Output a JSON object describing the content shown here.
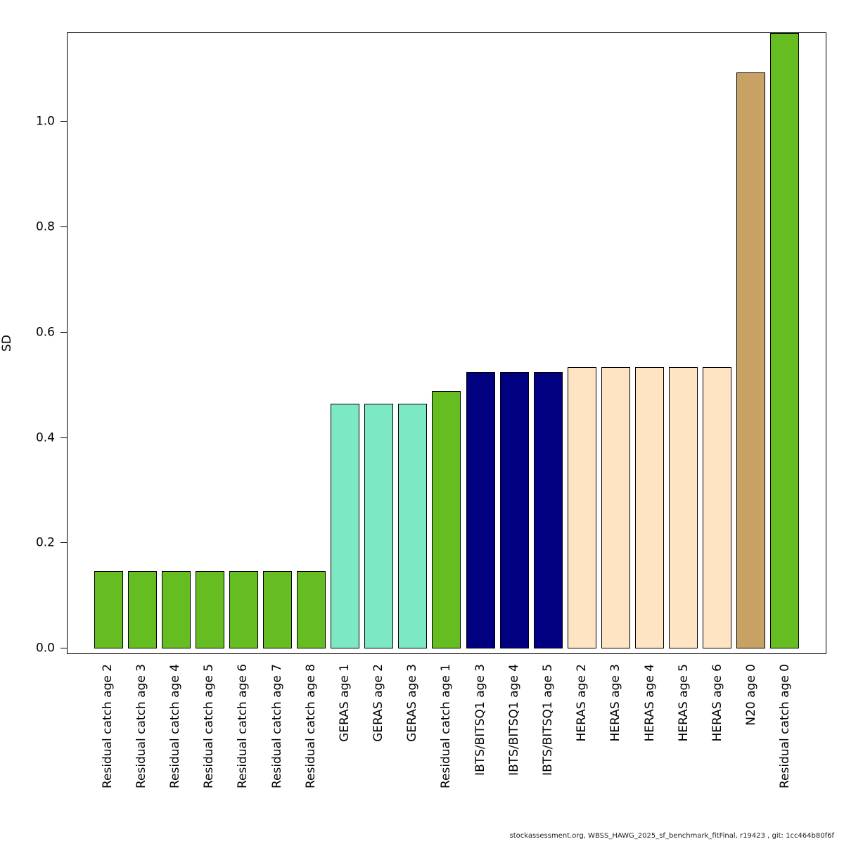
{
  "figure": {
    "ylabel": "SD",
    "footer": "stockassessment.org, WBSS_HAWG_2025_sf_benchmark_fitFinal, r19423 , git: 1cc464b80f6f"
  },
  "colors": {
    "residual_catch": "#66BD22",
    "geras": "#7CE8C4",
    "ibts_bitsq1": "#000080",
    "heras": "#FFE4C4",
    "n20": "#C8A165",
    "bar_border": "#000000"
  },
  "chart_data": {
    "type": "bar",
    "title": "",
    "xlabel": "",
    "ylabel": "SD",
    "ylim": [
      0,
      1.17
    ],
    "yticks": [
      0.0,
      0.2,
      0.4,
      0.6,
      0.8,
      1.0
    ],
    "grid": false,
    "legend_position": "none",
    "categories": [
      "Residual catch age 2",
      "Residual catch age 3",
      "Residual catch age 4",
      "Residual catch age 5",
      "Residual catch age 6",
      "Residual catch age 7",
      "Residual catch age 8",
      "GERAS age 1",
      "GERAS age 2",
      "GERAS age 3",
      "Residual catch age 1",
      "IBTS/BITSQ1 age 3",
      "IBTS/BITSQ1 age 4",
      "IBTS/BITSQ1 age 5",
      "HERAS age 2",
      "HERAS age 3",
      "HERAS age 4",
      "HERAS age 5",
      "HERAS age 6",
      "N20 age 0",
      "Residual catch age 0"
    ],
    "values": [
      0.147,
      0.147,
      0.147,
      0.147,
      0.147,
      0.147,
      0.147,
      0.465,
      0.465,
      0.465,
      0.49,
      0.525,
      0.525,
      0.525,
      0.535,
      0.535,
      0.535,
      0.535,
      0.535,
      1.095,
      1.17
    ],
    "bar_colors": [
      "#66BD22",
      "#66BD22",
      "#66BD22",
      "#66BD22",
      "#66BD22",
      "#66BD22",
      "#66BD22",
      "#7CE8C4",
      "#7CE8C4",
      "#7CE8C4",
      "#66BD22",
      "#000080",
      "#000080",
      "#000080",
      "#FFE4C4",
      "#FFE4C4",
      "#FFE4C4",
      "#FFE4C4",
      "#FFE4C4",
      "#C8A165",
      "#66BD22"
    ]
  }
}
